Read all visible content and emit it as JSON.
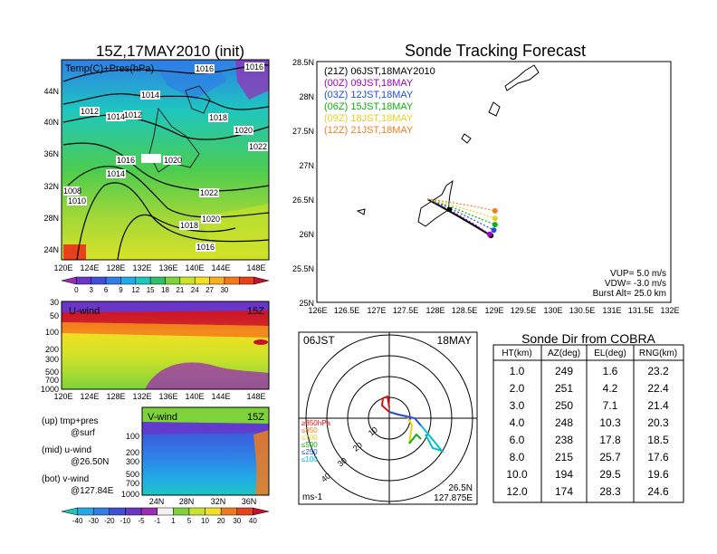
{
  "left_map": {
    "title": "15Z,17MAY2010 (init)",
    "label": "Temp(C)+Pres(hPa)",
    "y_ticks": [
      "44N",
      "40N",
      "36N",
      "32N",
      "28N",
      "24N"
    ],
    "x_ticks": [
      "120E",
      "124E",
      "128E",
      "132E",
      "136E",
      "140E",
      "144E",
      "148E"
    ],
    "isobars": [
      "1016",
      "1016",
      "1014",
      "1012",
      "1014",
      "1012",
      "1018",
      "1020",
      "1022",
      "1016",
      "1014",
      "1020",
      "1008",
      "1010",
      "1022",
      "1020",
      "1018",
      "1016"
    ],
    "colorbar_labels": [
      "0",
      "3",
      "6",
      "9",
      "12",
      "15",
      "18",
      "21",
      "24",
      "27",
      "30"
    ],
    "colorbar_colors": [
      "#9b2ab4",
      "#6a36c8",
      "#3f4fd8",
      "#2f7fe6",
      "#22a9e8",
      "#1ec6c0",
      "#2fbf6a",
      "#7fd33a",
      "#cbe22a",
      "#f2e022",
      "#f7b11f",
      "#f27a1c",
      "#e8401a",
      "#c8102a"
    ]
  },
  "uwind": {
    "label": "U-wind",
    "time": "15Z",
    "y_ticks": [
      "30",
      "50",
      "100",
      "200",
      "300",
      "500",
      "700",
      "1000"
    ],
    "x_ticks": [
      "120E",
      "124E",
      "128E",
      "132E",
      "136E",
      "140E",
      "144E",
      "148E"
    ]
  },
  "vwind": {
    "label": "V-wind",
    "time": "15Z",
    "y_ticks": [
      "100",
      "200",
      "300",
      "500",
      "700",
      "1000"
    ],
    "x_ticks": [
      "24N",
      "28N",
      "32N",
      "36N"
    ]
  },
  "notes": [
    {
      "a": "(up) tmp+pres",
      "b": "@surf"
    },
    {
      "a": "(mid) u-wind",
      "b": "@26.50N"
    },
    {
      "a": "(bot) v-wind",
      "b": "@127.84E"
    }
  ],
  "wind_colorbar": {
    "labels": [
      "-40",
      "-30",
      "-20",
      "-10",
      "-5",
      "-1",
      "1",
      "5",
      "10",
      "20",
      "30",
      "40"
    ],
    "colors": [
      "#1ec6c0",
      "#22a9e8",
      "#2f7fe6",
      "#3f4fd8",
      "#6a36c8",
      "#9b2ab4",
      "#f2f2f2",
      "#7fd33a",
      "#cbe22a",
      "#f2e022",
      "#f27a1c",
      "#e8401a",
      "#c8102a"
    ]
  },
  "track_map": {
    "title": "Sonde Tracking Forecast",
    "legend": [
      {
        "text": "(21Z)  06JST,18MAY2010",
        "color": "#000000"
      },
      {
        "text": "(00Z)  09JST,18MAY",
        "color": "#a000c0"
      },
      {
        "text": "(03Z)  12JST,18MAY",
        "color": "#2050e0"
      },
      {
        "text": "(06Z)  15JST,18MAY",
        "color": "#10b010"
      },
      {
        "text": "(09Z)  18JST,18MAY",
        "color": "#e8d020"
      },
      {
        "text": "(12Z)  21JST,18MAY",
        "color": "#f08020"
      }
    ],
    "y_ticks": [
      "28.5N",
      "28N",
      "27.5N",
      "27N",
      "26.5N",
      "26N",
      "25.5N",
      "25N"
    ],
    "x_ticks": [
      "126E",
      "126.5E",
      "127E",
      "127.5E",
      "128E",
      "128.5E",
      "129E",
      "129.5E",
      "130E",
      "130.5E",
      "131E",
      "131.5E",
      "132E"
    ],
    "params": [
      "VUP=  5.0 m/s",
      "VDW= -3.0 m/s",
      "Burst Alt= 25.0 km"
    ]
  },
  "chart_data": [
    {
      "type": "line",
      "title": "Sonde Tracking Forecast",
      "xlim": [
        126,
        132
      ],
      "ylim": [
        25,
        28.5
      ],
      "series": [
        {
          "name": "(21Z)  06JST,18MAY2010",
          "color": "#000000",
          "x": [
            127.875,
            128.3,
            128.7,
            128.95
          ],
          "y": [
            26.5,
            26.3,
            26.1,
            25.97
          ]
        },
        {
          "name": "(00Z)  09JST,18MAY",
          "color": "#a000c0",
          "x": [
            127.875,
            128.3,
            128.7,
            128.93
          ],
          "y": [
            26.5,
            26.32,
            26.12,
            25.99
          ]
        },
        {
          "name": "(03Z)  12JST,18MAY",
          "color": "#2050e0",
          "x": [
            127.875,
            128.3,
            128.7,
            129.0
          ],
          "y": [
            26.5,
            26.35,
            26.18,
            26.05
          ]
        },
        {
          "name": "(06Z)  15JST,18MAY",
          "color": "#10b010",
          "x": [
            127.875,
            128.3,
            128.7,
            129.02
          ],
          "y": [
            26.5,
            26.38,
            26.24,
            26.13
          ]
        },
        {
          "name": "(09Z)  18JST,18MAY",
          "color": "#e8d020",
          "x": [
            127.875,
            128.3,
            128.7,
            129.02
          ],
          "y": [
            26.5,
            26.41,
            26.31,
            26.22
          ]
        },
        {
          "name": "(12Z)  21JST,18MAY",
          "color": "#f08020",
          "x": [
            127.875,
            128.3,
            128.7,
            129.02
          ],
          "y": [
            26.5,
            26.45,
            26.39,
            26.33
          ]
        }
      ]
    },
    {
      "type": "table",
      "title": "Sonde Dir from COBRA",
      "columns": [
        "HT(km)",
        "AZ(deg)",
        "EL(deg)",
        "RNG(km)"
      ],
      "rows": [
        [
          "1.0",
          "249",
          "1.6",
          "23.2"
        ],
        [
          "2.0",
          "251",
          "4.2",
          "22.4"
        ],
        [
          "3.0",
          "250",
          "7.1",
          "21.4"
        ],
        [
          "4.0",
          "248",
          "10.3",
          "20.3"
        ],
        [
          "6.0",
          "238",
          "17.8",
          "18.5"
        ],
        [
          "8.0",
          "215",
          "25.7",
          "17.6"
        ],
        [
          "10.0",
          "194",
          "29.5",
          "19.6"
        ],
        [
          "12.0",
          "174",
          "28.3",
          "24.6"
        ]
      ]
    }
  ],
  "polar": {
    "left_label": "06JST",
    "right_label": "18MAY",
    "ring_labels": [
      "10",
      "20",
      "30",
      "40"
    ],
    "legend": [
      {
        "text": "≥850hPa",
        "color": "#e01010"
      },
      {
        "text": "≤850",
        "color": "#f08020"
      },
      {
        "text": "≤700",
        "color": "#e8d020"
      },
      {
        "text": "≤500",
        "color": "#10b010"
      },
      {
        "text": "≤250",
        "color": "#2050e0"
      },
      {
        "text": "≤100",
        "color": "#00c0d0"
      }
    ],
    "bottom_left": "ms-1",
    "bottom_right_1": "26.5N",
    "bottom_right_2": "127.875E"
  }
}
